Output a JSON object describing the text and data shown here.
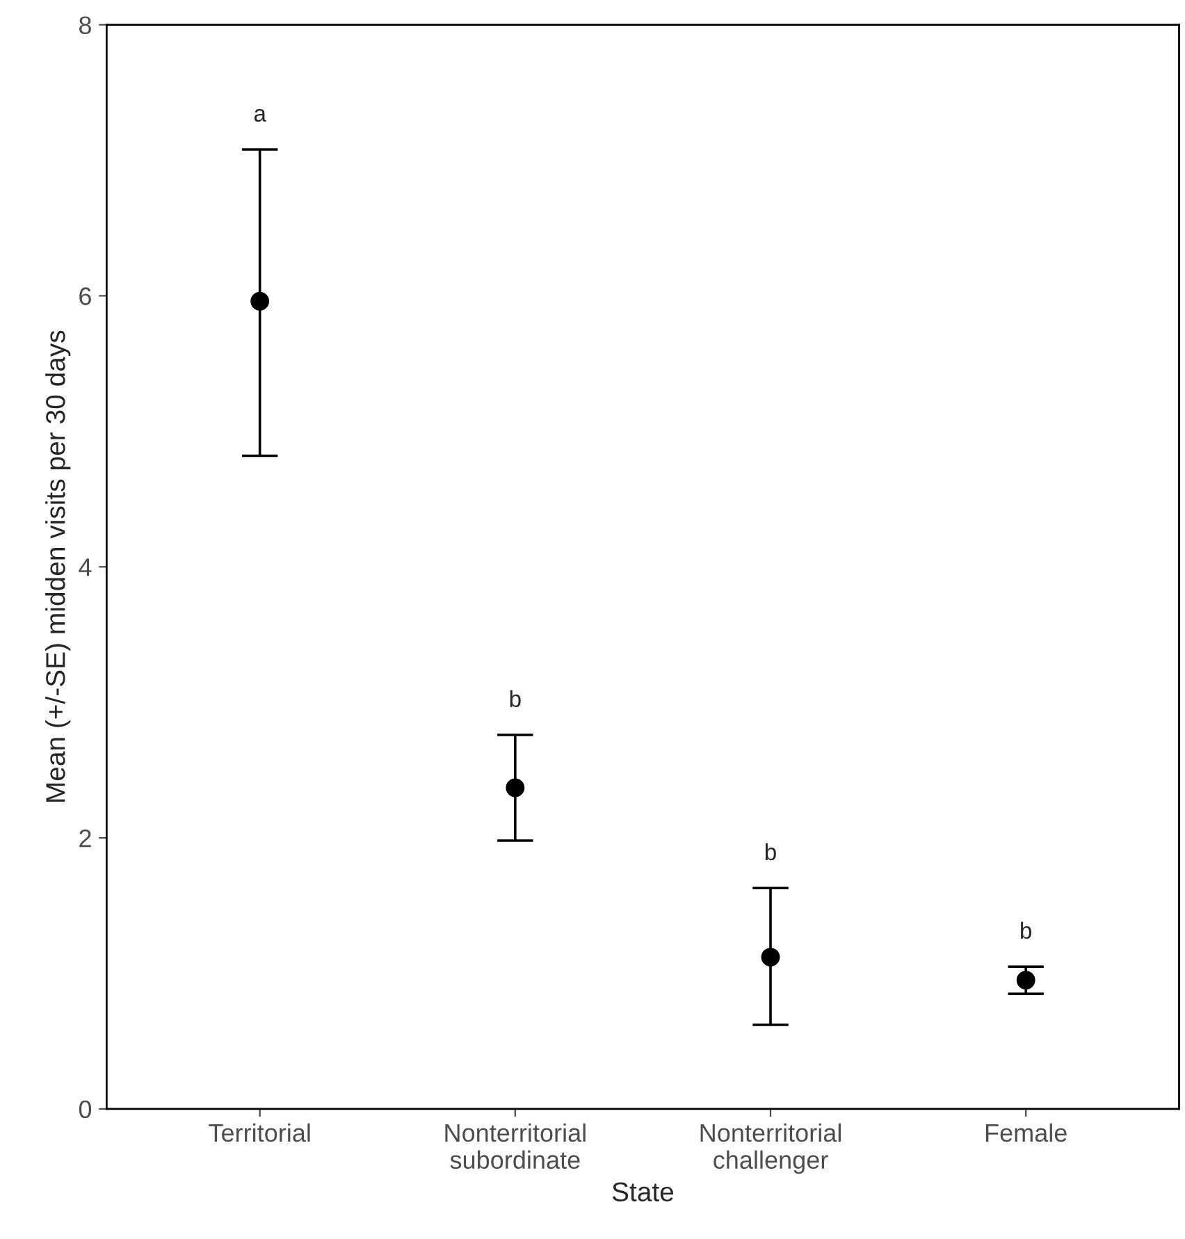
{
  "chart_data": {
    "type": "scatter",
    "xlabel": "State",
    "ylabel": "Mean (+/-SE) midden visits per 30 days",
    "categories": [
      "Territorial",
      "Nonterritorial\nsubordinate",
      "Nonterritorial\nchallenger",
      "Female"
    ],
    "values": [
      5.96,
      2.37,
      1.12,
      0.95
    ],
    "errors": [
      [
        4.82,
        7.08
      ],
      [
        1.98,
        2.76
      ],
      [
        0.62,
        1.63
      ],
      [
        0.85,
        1.05
      ]
    ],
    "color": "#000000",
    "marker": "circle",
    "grid": false,
    "legend": false,
    "ylim": [
      0,
      8
    ],
    "yticks": [
      0,
      2,
      4,
      6,
      8
    ],
    "annotations": [
      "a",
      "b",
      "b",
      "b"
    ]
  }
}
